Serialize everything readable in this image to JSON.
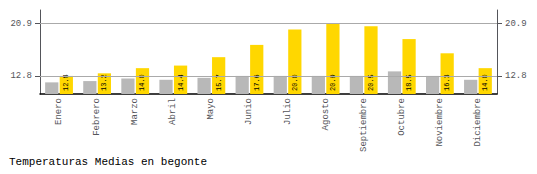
{
  "chart_data": {
    "type": "bar",
    "title": "Temperaturas Medias en begonte",
    "categories": [
      "Enero",
      "Febrero",
      "Marzo",
      "Abril",
      "Mayo",
      "Junio",
      "Julio",
      "Agosto",
      "Septiembre",
      "Octubre",
      "Noviembre",
      "Diciembre"
    ],
    "series": [
      {
        "color": "#B8B8B8",
        "values": [
          11.8,
          12.0,
          12.4,
          12.2,
          12.5,
          12.8,
          12.8,
          12.8,
          12.8,
          13.5,
          12.8,
          12.2
        ]
      },
      {
        "color": "#FFD700",
        "values": [
          12.8,
          13.2,
          14.0,
          14.4,
          15.7,
          17.6,
          20.0,
          20.9,
          20.5,
          18.5,
          16.3,
          14.0
        ],
        "data_labels": true,
        "value_labels": [
          "12.8",
          "13.2",
          "14.0",
          "14.4",
          "15.7",
          "17.6",
          "20.0",
          "20.9",
          "20.5",
          "18.5",
          "16.3",
          "14.0"
        ]
      }
    ],
    "ylim": [
      10.0,
      23.0
    ],
    "yticks": [
      12.8,
      20.9
    ],
    "y2lim": [
      10.0,
      23.0
    ],
    "y2ticks": [
      12.8,
      20.9
    ],
    "grid": true
  }
}
